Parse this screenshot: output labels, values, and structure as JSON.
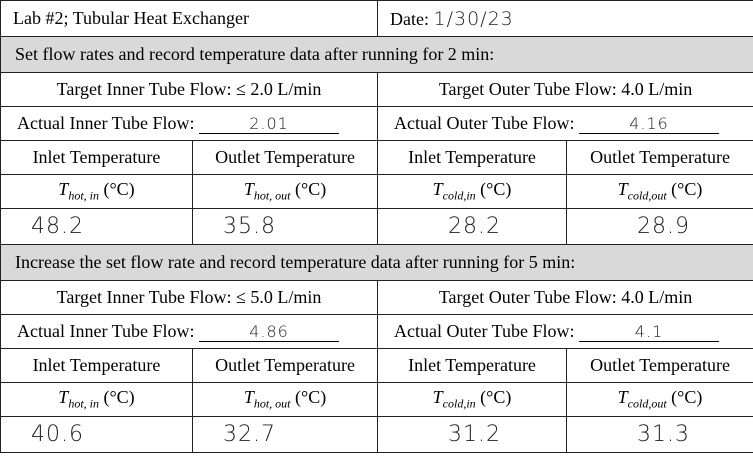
{
  "header": {
    "title": "Lab #2; Tubular Heat Exchanger",
    "date_label": "Date:",
    "date": "1/30/23"
  },
  "sections": [
    {
      "instruction": "Set flow rates and record temperature data after running for 2 min:",
      "inner_target": "Target Inner Tube Flow: ≤ 2.0 L/min",
      "outer_target": "Target Outer Tube Flow: 4.0 L/min",
      "inner_actual_label": "Actual Inner Tube Flow:",
      "inner_actual": "2.01",
      "outer_actual_label": "Actual Outer Tube Flow:",
      "outer_actual": "4.16",
      "columns": [
        {
          "heading": "Inlet Temperature",
          "symbol": "T",
          "subscript": "hot, in",
          "unit": "(°C)"
        },
        {
          "heading": "Outlet Temperature",
          "symbol": "T",
          "subscript": "hot, out",
          "unit": "(°C)"
        },
        {
          "heading": "Inlet Temperature",
          "symbol": "T",
          "subscript": "cold,in",
          "unit": "(°C)"
        },
        {
          "heading": "Outlet Temperature",
          "symbol": "T",
          "subscript": "cold,out",
          "unit": "(°C)"
        }
      ],
      "readings": [
        "48.2",
        "35.8",
        "28.2",
        "28.9"
      ]
    },
    {
      "instruction": "Increase the set flow rate and record temperature data after running for 5 min:",
      "inner_target": "Target Inner Tube Flow: ≤ 5.0 L/min",
      "outer_target": "Target Outer Tube Flow: 4.0 L/min",
      "inner_actual_label": "Actual Inner Tube Flow:",
      "inner_actual": "4.86",
      "outer_actual_label": "Actual Outer Tube Flow:",
      "outer_actual": "4.1",
      "columns": [
        {
          "heading": "Inlet Temperature",
          "symbol": "T",
          "subscript": "hot, in",
          "unit": "(°C)"
        },
        {
          "heading": "Outlet Temperature",
          "symbol": "T",
          "subscript": "hot, out",
          "unit": "(°C)"
        },
        {
          "heading": "Inlet Temperature",
          "symbol": "T",
          "subscript": "cold,in",
          "unit": "(°C)"
        },
        {
          "heading": "Outlet Temperature",
          "symbol": "T",
          "subscript": "cold,out",
          "unit": "(°C)"
        }
      ],
      "readings": [
        "40.6",
        "32.7",
        "31.2",
        "31.3"
      ]
    }
  ]
}
